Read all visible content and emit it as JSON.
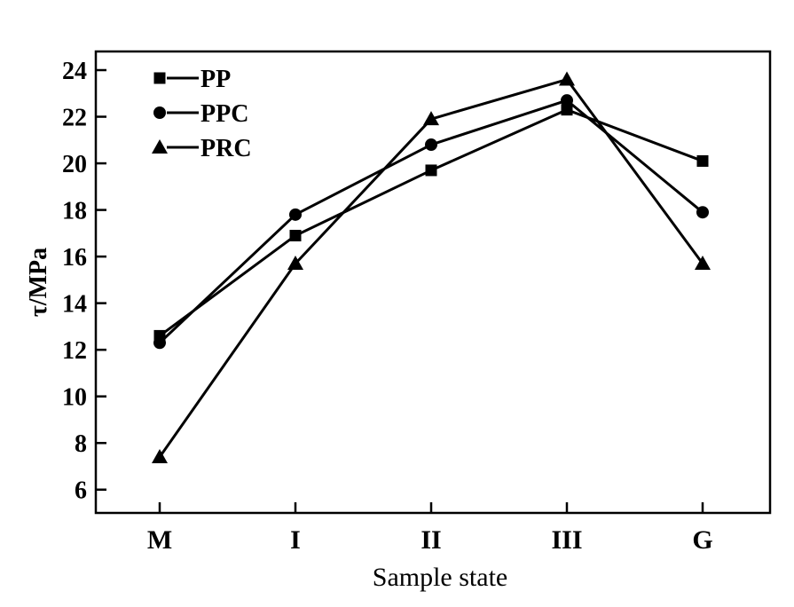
{
  "chart_data": {
    "type": "line",
    "title": "",
    "xlabel": "Sample state",
    "ylabel": "τ/MPa",
    "categories": [
      "M",
      "I",
      "II",
      "III",
      "G"
    ],
    "ylim": [
      5,
      24.8
    ],
    "yticks": [
      6,
      8,
      10,
      12,
      14,
      16,
      18,
      20,
      22,
      24
    ],
    "grid": false,
    "legend_position": "top-left",
    "series": [
      {
        "name": "PP",
        "marker": "square",
        "color": "#000000",
        "values": [
          12.6,
          16.9,
          19.7,
          22.3,
          20.1
        ]
      },
      {
        "name": "PPC",
        "marker": "circle",
        "color": "#000000",
        "values": [
          12.3,
          17.8,
          20.8,
          22.7,
          17.9
        ]
      },
      {
        "name": "PRC",
        "marker": "triangle",
        "color": "#000000",
        "values": [
          7.4,
          15.7,
          21.9,
          23.6,
          15.7
        ]
      }
    ]
  }
}
